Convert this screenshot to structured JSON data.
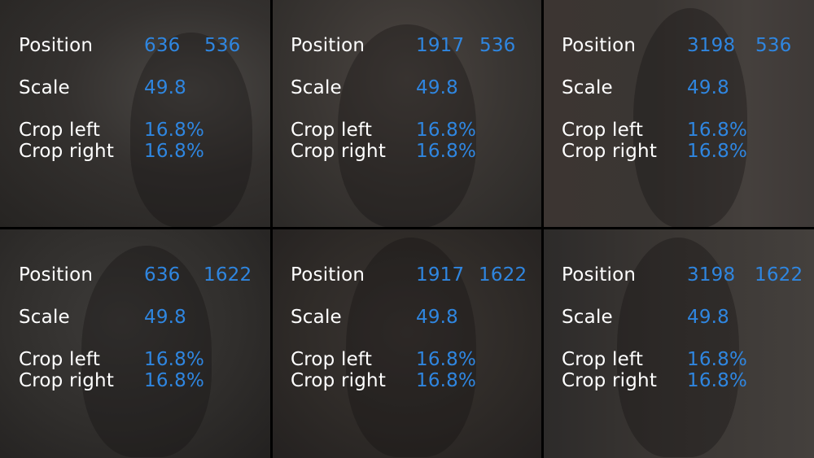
{
  "labels": {
    "position": "Position",
    "scale": "Scale",
    "crop_left": "Crop left",
    "crop_right": "Crop right"
  },
  "tiles": [
    {
      "position_x": "636",
      "position_y": "536",
      "scale": "49.8",
      "crop_left": "16.8%",
      "crop_right": "16.8%"
    },
    {
      "position_x": "1917",
      "position_y": "536",
      "scale": "49.8",
      "crop_left": "16.8%",
      "crop_right": "16.8%"
    },
    {
      "position_x": "3198",
      "position_y": "536",
      "scale": "49.8",
      "crop_left": "16.8%",
      "crop_right": "16.8%"
    },
    {
      "position_x": "636",
      "position_y": "1622",
      "scale": "49.8",
      "crop_left": "16.8%",
      "crop_right": "16.8%"
    },
    {
      "position_x": "1917",
      "position_y": "1622",
      "scale": "49.8",
      "crop_left": "16.8%",
      "crop_right": "16.8%"
    },
    {
      "position_x": "3198",
      "position_y": "1622",
      "scale": "49.8",
      "crop_left": "16.8%",
      "crop_right": "16.8%"
    }
  ],
  "colors": {
    "label": "#ffffff",
    "value": "#2f86e0",
    "divider": "#000000"
  }
}
